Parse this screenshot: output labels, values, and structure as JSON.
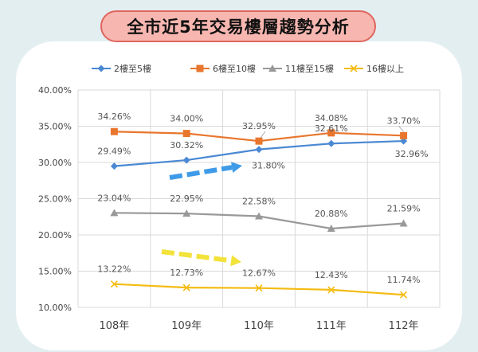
{
  "title": "全市近5年交易樓層趨勢分析",
  "chart_data": {
    "type": "line",
    "categories": [
      "108年",
      "109年",
      "110年",
      "111年",
      "112年"
    ],
    "ylim": [
      10,
      40
    ],
    "y_ticks": [
      "10.00%",
      "15.00%",
      "20.00%",
      "25.00%",
      "30.00%",
      "35.00%",
      "40.00%"
    ],
    "legend_position": "top",
    "grid": true,
    "series": [
      {
        "name": "2樓至5樓",
        "color": "#4a89d3",
        "marker": "diamond",
        "values": [
          29.49,
          30.32,
          31.8,
          32.61,
          32.96
        ],
        "labels": [
          "29.49%",
          "30.32%",
          "31.80%",
          "32.61%",
          "32.96%"
        ]
      },
      {
        "name": "6樓至10樓",
        "color": "#e8762d",
        "marker": "square",
        "values": [
          34.26,
          34.0,
          32.95,
          34.08,
          33.7
        ],
        "labels": [
          "34.26%",
          "34.00%",
          "32.95%",
          "34.08%",
          "33.70%"
        ]
      },
      {
        "name": "11樓至15樓",
        "color": "#999999",
        "marker": "triangle",
        "values": [
          23.04,
          22.95,
          22.58,
          20.88,
          21.59
        ],
        "labels": [
          "23.04%",
          "22.95%",
          "22.58%",
          "20.88%",
          "21.59%"
        ]
      },
      {
        "name": "16樓以上",
        "color": "#f4bb12",
        "marker": "x",
        "values": [
          13.22,
          12.73,
          12.67,
          12.43,
          11.74
        ],
        "labels": [
          "13.22%",
          "12.73%",
          "12.67%",
          "12.43%",
          "11.74%"
        ]
      }
    ]
  },
  "decor": {
    "arrow_up_color": "#3f9be8",
    "arrow_flat_color": "#f2e23a"
  }
}
